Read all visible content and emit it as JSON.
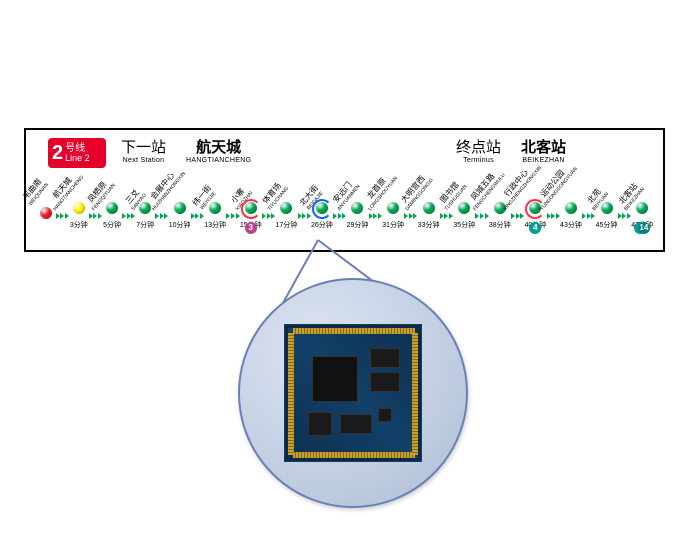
{
  "line": {
    "num": "2",
    "label_cn": "号线",
    "label_en": "Line 2",
    "badge_bg": "#e4002b"
  },
  "hdr_next": {
    "cn": "下一站",
    "en": "Next Station"
  },
  "hdr_next_val": {
    "cn": "航天城",
    "en": "HANGTIANCHENG"
  },
  "hdr_term": {
    "cn": "终点站",
    "en": "Terminus"
  },
  "hdr_term_val": {
    "cn": "北客站",
    "en": "BEIKEZHAN"
  },
  "colors": {
    "passed": "#00a651",
    "red": "#ed1c24",
    "yellow": "#fff200",
    "green": "#00a651",
    "chev_passed": "#00a651",
    "chev_ahead": "#00a651",
    "halo_red": "#ff3040",
    "halo_blue": "#1060ff",
    "t3": "#c04090",
    "t4": "#00a090",
    "t14": "#008080"
  },
  "stations": [
    {
      "cn": "韦曲南",
      "en": "WEIQUNAN",
      "time": "",
      "dot": "#ed1c24"
    },
    {
      "cn": "航天城",
      "en": "HANGTIANCHENG",
      "time": "3分钟",
      "dot": "#fff200"
    },
    {
      "cn": "凤栖原",
      "en": "FENGQIYUAN",
      "time": "5分钟",
      "dot": "#00a651"
    },
    {
      "cn": "三爻",
      "en": "SANYAO",
      "time": "7分钟",
      "dot": "#00a651"
    },
    {
      "cn": "会展中心",
      "en": "HUIZHANZHONGXIN",
      "time": "10分钟",
      "dot": "#00a651"
    },
    {
      "cn": "纬一街",
      "en": "WEIYIJIE",
      "time": "13分钟",
      "dot": "#00a651"
    },
    {
      "cn": "小寨",
      "en": "XIAOZHAI",
      "time": "15分钟",
      "dot": "#00a651",
      "halo": "#ff3040",
      "transfer": {
        "num": "3",
        "bg": "#c04090"
      }
    },
    {
      "cn": "体育场",
      "en": "TIYUCHANG",
      "time": "17分钟",
      "dot": "#00a651"
    },
    {
      "cn": "北大街",
      "en": "BEIDAJIE",
      "time": "26分钟",
      "dot": "#00a651",
      "halo": "#1060ff",
      "transfer": {
        "num": "",
        "bg": ""
      }
    },
    {
      "cn": "安远门",
      "en": "ANYUANMEN",
      "time": "29分钟",
      "dot": "#00a651"
    },
    {
      "cn": "龙首原",
      "en": "LONGSHOUYUAN",
      "time": "31分钟",
      "dot": "#00a651"
    },
    {
      "cn": "大明宫西",
      "en": "DAMINGGONGXI",
      "time": "33分钟",
      "dot": "#00a651"
    },
    {
      "cn": "图书馆",
      "en": "TUSHUGUAN",
      "time": "35分钟",
      "dot": "#00a651"
    },
    {
      "cn": "凤城五路",
      "en": "FENGCHENGWULU",
      "time": "38分钟",
      "dot": "#00a651"
    },
    {
      "cn": "行政中心",
      "en": "XINGZHENGZHONGXIN",
      "time": "40分钟",
      "dot": "#00a651",
      "halo": "#ff3040",
      "transfer": {
        "num": "4",
        "bg": "#00a090"
      }
    },
    {
      "cn": "运动公园",
      "en": "YUNDONGGONGYUAN",
      "time": "43分钟",
      "dot": "#00a651"
    },
    {
      "cn": "北苑",
      "en": "BEIYUAN",
      "time": "45分钟",
      "dot": "#00a651"
    },
    {
      "cn": "北客站",
      "en": "BEIKEZHAN",
      "time": "47分钟",
      "dot": "#00a651",
      "transfer2": [
        {
          "num": "4",
          "bg": "#00a090"
        },
        {
          "num": "14",
          "bg": "#008080"
        }
      ]
    }
  ]
}
